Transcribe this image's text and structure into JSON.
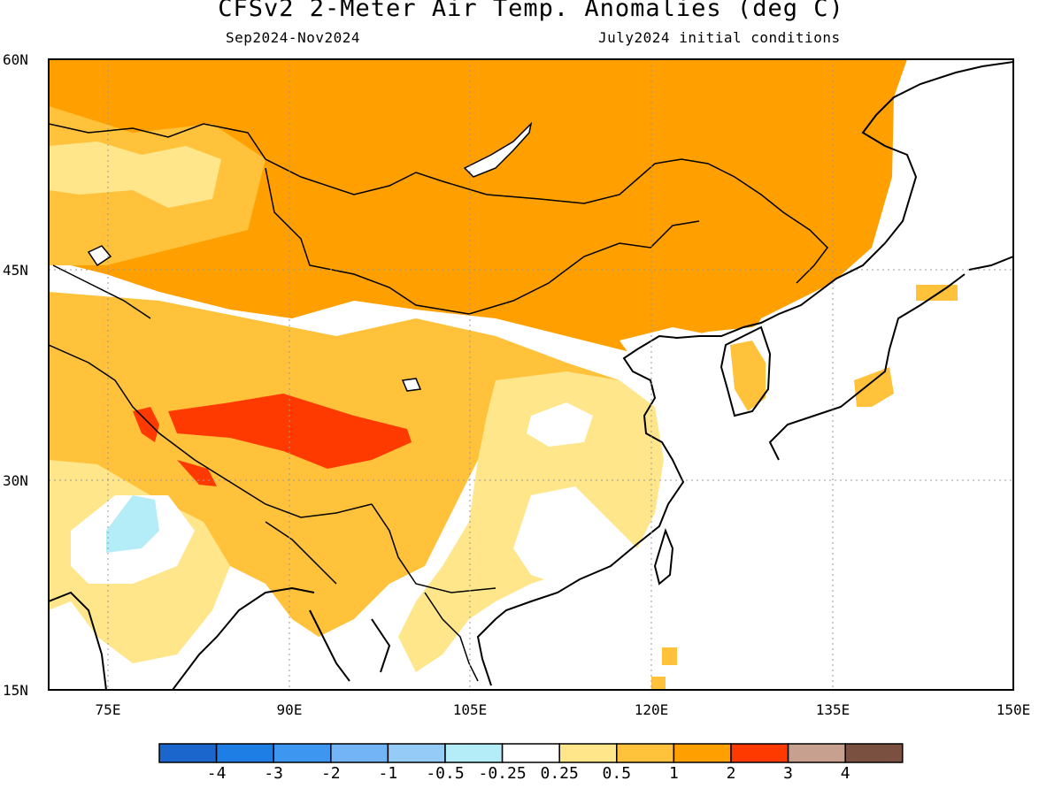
{
  "title": "CFSv2 2-Meter Air Temp. Anomalies (deg C)",
  "subtitle_left": "Sep2024-Nov2024",
  "subtitle_right": "July2024 initial conditions",
  "map": {
    "lon_range": [
      70,
      150
    ],
    "lat_range": [
      15,
      60
    ],
    "lat_ticks": [
      "60N",
      "45N",
      "30N",
      "15N"
    ],
    "lon_ticks": [
      "75E",
      "90E",
      "105E",
      "120E",
      "135E",
      "150E"
    ],
    "gridlines": "dotted"
  },
  "colorbar": {
    "colors": [
      "#1a66cc",
      "#1f7ee6",
      "#3d97f0",
      "#72b4f5",
      "#94cbf7",
      "#b4ecf8",
      "#ffffff",
      "#ffe68a",
      "#ffc23a",
      "#ffa000",
      "#ff3a00",
      "#c8a090",
      "#7a5040"
    ],
    "labels": [
      "-4",
      "-3",
      "-2",
      "-1",
      "-0.5",
      "-0.25",
      "0.25",
      "0.5",
      "1",
      "2",
      "3",
      "4"
    ]
  },
  "regions": [
    {
      "name": "northern-band",
      "anomaly_class": "1 to 2",
      "color": "#ffa000"
    },
    {
      "name": "central-asia",
      "anomaly_class": "0.5 to 1",
      "color": "#ffc23a"
    },
    {
      "name": "kazakh-steppe",
      "anomaly_class": "0.25 to 0.5",
      "color": "#ffe68a"
    },
    {
      "name": "tibetan-plateau-core",
      "anomaly_class": "2 to 3",
      "color": "#ff3a00"
    },
    {
      "name": "india-west",
      "anomaly_class": "-0.5 to -0.25",
      "color": "#b4ecf8"
    },
    {
      "name": "southeast-china",
      "anomaly_class": "-0.25 to 0.25",
      "color": "#ffffff"
    }
  ]
}
